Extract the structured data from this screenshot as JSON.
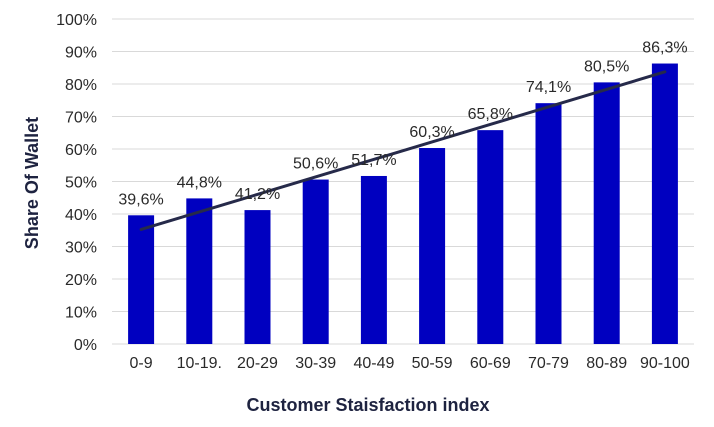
{
  "chart_data": {
    "type": "bar",
    "title": "",
    "xlabel": "Customer Staisfaction index",
    "ylabel": "Share Of Wallet",
    "categories": [
      "0-9",
      "10-19.",
      "20-29",
      "30-39",
      "40-49",
      "50-59",
      "60-69",
      "70-79",
      "80-89",
      "90-100"
    ],
    "values": [
      39.6,
      44.8,
      41.2,
      50.6,
      51.7,
      60.3,
      65.8,
      74.1,
      80.5,
      86.3
    ],
    "data_labels": [
      "39,6%",
      "44,8%",
      "41,2%",
      "50,6%",
      "51,7%",
      "60,3%",
      "65,8%",
      "74,1%",
      "80,5%",
      "86,3%"
    ],
    "ylim": [
      0,
      100
    ],
    "y_ticks": [
      0,
      10,
      20,
      30,
      40,
      50,
      60,
      70,
      80,
      90,
      100
    ],
    "y_tick_labels": [
      "0%",
      "10%",
      "20%",
      "30%",
      "40%",
      "50%",
      "60%",
      "70%",
      "80%",
      "90%",
      "100%"
    ],
    "trendline": {
      "type": "linear",
      "color": "#262a4a"
    },
    "grid": true,
    "legend": "none",
    "colors": {
      "bar": "#0000c0",
      "trendline": "#262a4a",
      "grid": "#d9d9d9"
    }
  }
}
